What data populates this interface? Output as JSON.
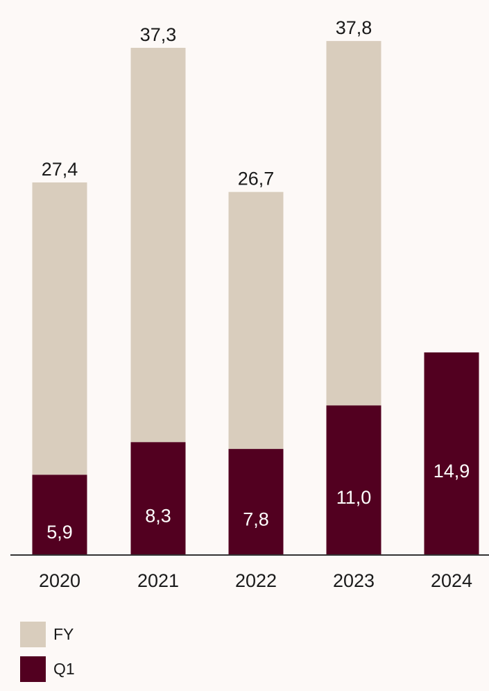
{
  "chart_data": {
    "type": "bar",
    "stacked": true,
    "categories": [
      "2020",
      "2021",
      "2022",
      "2023",
      "2024"
    ],
    "series": [
      {
        "name": "Q1",
        "values": [
          5.9,
          8.3,
          7.8,
          11.0,
          14.9
        ],
        "labels": [
          "5,9",
          "8,3",
          "7,8",
          "11,0",
          "14,9"
        ],
        "color": "#520020"
      },
      {
        "name": "FY",
        "values": [
          21.5,
          29.0,
          18.9,
          26.8,
          null
        ],
        "color": "#d9cdbd"
      }
    ],
    "totals": [
      27.4,
      37.3,
      26.7,
      37.8,
      null
    ],
    "total_labels": [
      "27,4",
      "37,3",
      "26,7",
      "37,8",
      ""
    ],
    "title": "",
    "xlabel": "",
    "ylabel": "",
    "ylim": [
      0,
      40
    ],
    "grid": false,
    "legend_position": "bottom-left"
  },
  "legend": [
    {
      "label": "FY",
      "color": "#d9cdbd"
    },
    {
      "label": "Q1",
      "color": "#520020"
    }
  ],
  "colors": {
    "background": "#fdf9f7",
    "axis": "#333333",
    "text": "#1a1a1a",
    "label_on_dark": "#ffffff"
  }
}
